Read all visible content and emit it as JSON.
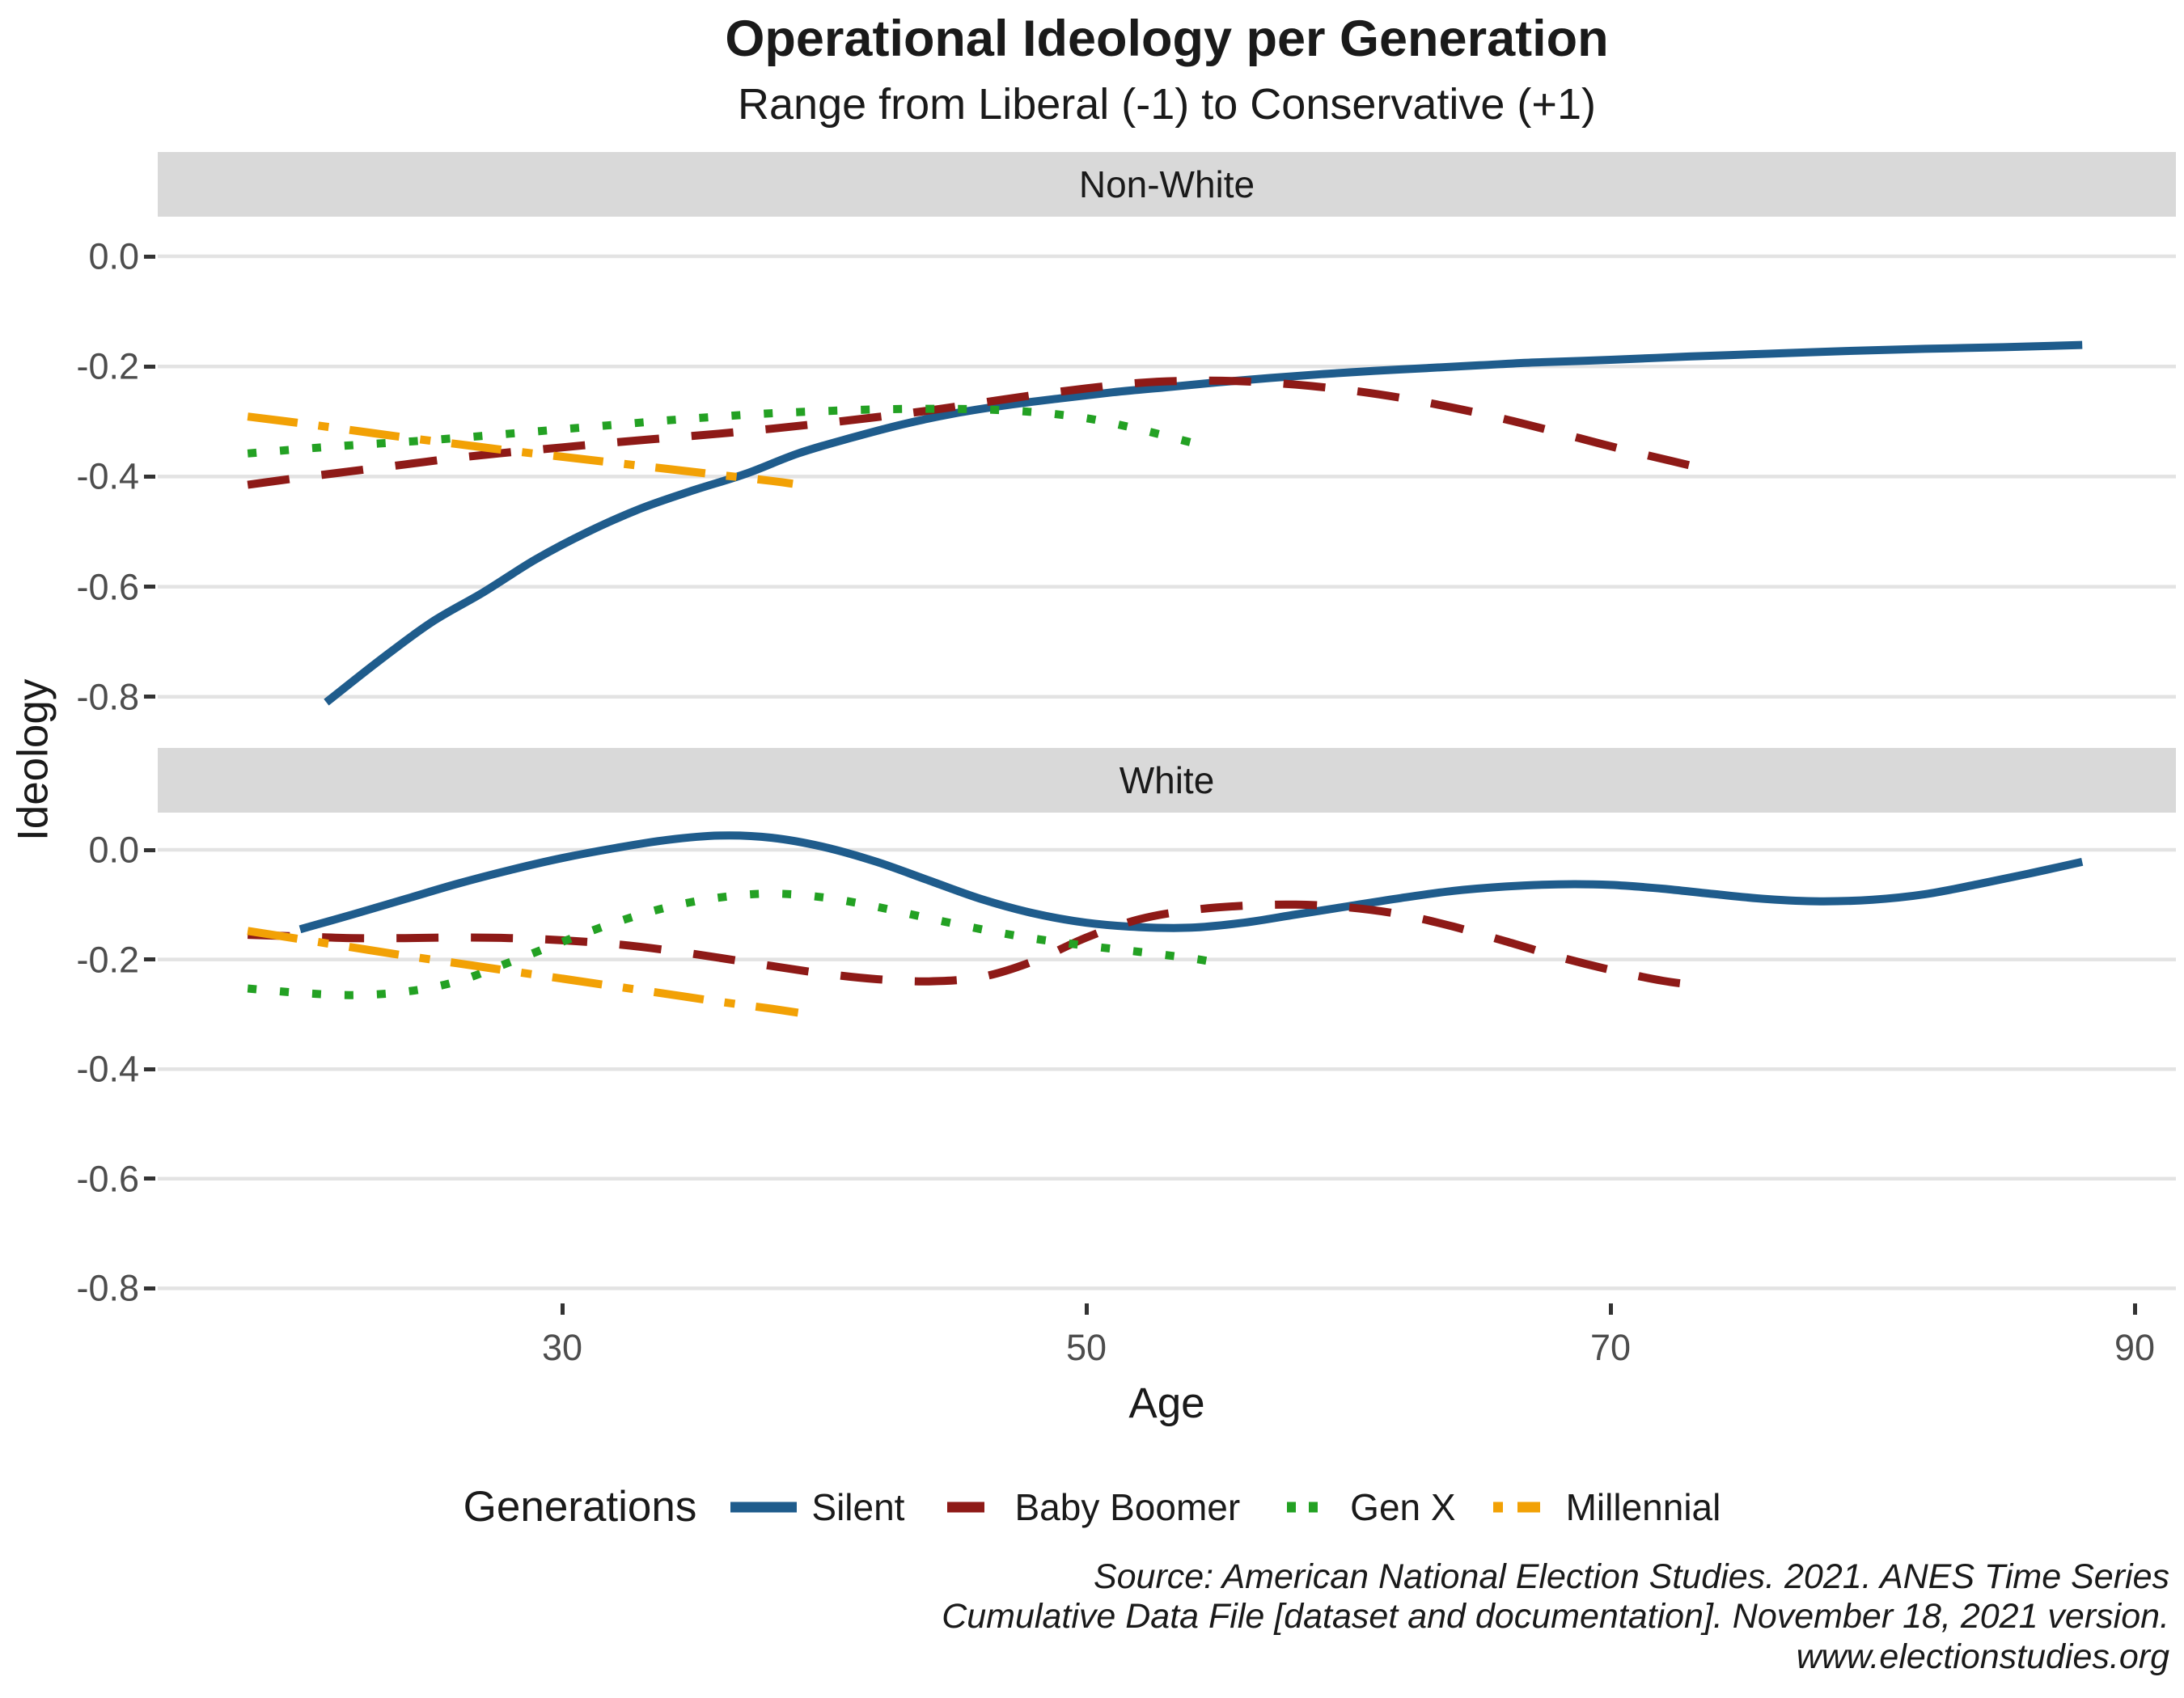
{
  "chart_data": {
    "type": "line",
    "title": "Operational Ideology per Generation",
    "subtitle": "Range from Liberal (-1) to Conservative (+1)",
    "xlabel": "Age",
    "ylabel": "Ideology",
    "x_ticks": [
      30,
      50,
      70,
      90
    ],
    "y_ticks": [
      0.0,
      -0.2,
      -0.4,
      -0.6,
      -0.8
    ],
    "y_tick_labels": [
      "0.0",
      "-0.2",
      "-0.4",
      "-0.6",
      "-0.8"
    ],
    "x_range": [
      14.5,
      91.5
    ],
    "grid": "horizontal-major-only",
    "legend_position": "bottom",
    "legend_title": "Generations",
    "legend_items": [
      {
        "label": "Silent",
        "color": "#1F5C8C",
        "style": "solid"
      },
      {
        "label": "Baby Boomer",
        "color": "#8E1A17",
        "style": "dashed"
      },
      {
        "label": "Gen X",
        "color": "#23A123",
        "style": "dotted"
      },
      {
        "label": "Millennial",
        "color": "#F2A105",
        "style": "dashdot"
      }
    ],
    "facets": [
      {
        "label": "Non-White",
        "series": [
          {
            "name": "Silent",
            "color": "#1F5C8C",
            "style": "solid",
            "points": [
              [
                21,
                -0.81
              ],
              [
                23,
                -0.735
              ],
              [
                25,
                -0.665
              ],
              [
                27,
                -0.61
              ],
              [
                29,
                -0.55
              ],
              [
                31,
                -0.5
              ],
              [
                33,
                -0.458
              ],
              [
                35,
                -0.425
              ],
              [
                37,
                -0.395
              ],
              [
                39,
                -0.358
              ],
              [
                41,
                -0.33
              ],
              [
                43,
                -0.305
              ],
              [
                45,
                -0.285
              ],
              [
                47,
                -0.27
              ],
              [
                49,
                -0.258
              ],
              [
                51,
                -0.247
              ],
              [
                53,
                -0.238
              ],
              [
                55,
                -0.229
              ],
              [
                57,
                -0.221
              ],
              [
                59,
                -0.214
              ],
              [
                61,
                -0.208
              ],
              [
                63,
                -0.203
              ],
              [
                65,
                -0.198
              ],
              [
                67,
                -0.193
              ],
              [
                70,
                -0.188
              ],
              [
                73,
                -0.182
              ],
              [
                76,
                -0.177
              ],
              [
                79,
                -0.172
              ],
              [
                82,
                -0.168
              ],
              [
                85,
                -0.165
              ],
              [
                88,
                -0.161
              ]
            ]
          },
          {
            "name": "Baby Boomer",
            "color": "#8E1A17",
            "style": "dashed",
            "points": [
              [
                18,
                -0.415
              ],
              [
                20,
                -0.402
              ],
              [
                22,
                -0.39
              ],
              [
                24,
                -0.378
              ],
              [
                26,
                -0.366
              ],
              [
                28,
                -0.356
              ],
              [
                30,
                -0.347
              ],
              [
                32,
                -0.338
              ],
              [
                34,
                -0.33
              ],
              [
                36,
                -0.322
              ],
              [
                38,
                -0.313
              ],
              [
                40,
                -0.303
              ],
              [
                42,
                -0.292
              ],
              [
                44,
                -0.28
              ],
              [
                46,
                -0.266
              ],
              [
                48,
                -0.252
              ],
              [
                50,
                -0.24
              ],
              [
                52,
                -0.23
              ],
              [
                54,
                -0.226
              ],
              [
                56,
                -0.227
              ],
              [
                58,
                -0.233
              ],
              [
                60,
                -0.243
              ],
              [
                62,
                -0.257
              ],
              [
                64,
                -0.275
              ],
              [
                66,
                -0.296
              ],
              [
                68,
                -0.32
              ],
              [
                70,
                -0.345
              ],
              [
                72,
                -0.368
              ],
              [
                73.5,
                -0.385
              ]
            ]
          },
          {
            "name": "Gen X",
            "color": "#23A123",
            "style": "dotted",
            "points": [
              [
                18,
                -0.358
              ],
              [
                20,
                -0.35
              ],
              [
                22,
                -0.343
              ],
              [
                24,
                -0.337
              ],
              [
                26,
                -0.33
              ],
              [
                28,
                -0.322
              ],
              [
                30,
                -0.314
              ],
              [
                32,
                -0.306
              ],
              [
                34,
                -0.298
              ],
              [
                36,
                -0.291
              ],
              [
                38,
                -0.285
              ],
              [
                40,
                -0.281
              ],
              [
                42,
                -0.278
              ],
              [
                44,
                -0.277
              ],
              [
                46,
                -0.278
              ],
              [
                48,
                -0.283
              ],
              [
                50,
                -0.294
              ],
              [
                52,
                -0.314
              ],
              [
                54,
                -0.338
              ]
            ]
          },
          {
            "name": "Millennial",
            "color": "#F2A105",
            "style": "dashdot",
            "points": [
              [
                18,
                -0.291
              ],
              [
                20,
                -0.303
              ],
              [
                22,
                -0.316
              ],
              [
                24,
                -0.329
              ],
              [
                26,
                -0.341
              ],
              [
                28,
                -0.353
              ],
              [
                30,
                -0.364
              ],
              [
                32,
                -0.375
              ],
              [
                34,
                -0.386
              ],
              [
                36,
                -0.397
              ],
              [
                38,
                -0.408
              ],
              [
                38.8,
                -0.413
              ]
            ]
          }
        ]
      },
      {
        "label": "White",
        "series": [
          {
            "name": "Silent",
            "color": "#1F5C8C",
            "style": "solid",
            "points": [
              [
                20,
                -0.145
              ],
              [
                22,
                -0.118
              ],
              [
                24,
                -0.09
              ],
              [
                26,
                -0.062
              ],
              [
                28,
                -0.037
              ],
              [
                30,
                -0.015
              ],
              [
                32,
                0.003
              ],
              [
                34,
                0.018
              ],
              [
                36,
                0.026
              ],
              [
                38,
                0.022
              ],
              [
                40,
                0.005
              ],
              [
                42,
                -0.022
              ],
              [
                44,
                -0.056
              ],
              [
                46,
                -0.09
              ],
              [
                48,
                -0.116
              ],
              [
                50,
                -0.133
              ],
              [
                52,
                -0.141
              ],
              [
                54,
                -0.142
              ],
              [
                56,
                -0.133
              ],
              [
                58,
                -0.118
              ],
              [
                60,
                -0.103
              ],
              [
                62,
                -0.088
              ],
              [
                64,
                -0.075
              ],
              [
                66,
                -0.067
              ],
              [
                68,
                -0.063
              ],
              [
                70,
                -0.064
              ],
              [
                72,
                -0.071
              ],
              [
                74,
                -0.081
              ],
              [
                76,
                -0.09
              ],
              [
                78,
                -0.094
              ],
              [
                80,
                -0.091
              ],
              [
                82,
                -0.081
              ],
              [
                84,
                -0.063
              ],
              [
                86,
                -0.043
              ],
              [
                88,
                -0.022
              ]
            ]
          },
          {
            "name": "Baby Boomer",
            "color": "#8E1A17",
            "style": "dashed",
            "points": [
              [
                18,
                -0.155
              ],
              [
                20,
                -0.158
              ],
              [
                22,
                -0.161
              ],
              [
                24,
                -0.161
              ],
              [
                26,
                -0.16
              ],
              [
                28,
                -0.161
              ],
              [
                30,
                -0.165
              ],
              [
                32,
                -0.172
              ],
              [
                34,
                -0.183
              ],
              [
                36,
                -0.197
              ],
              [
                38,
                -0.212
              ],
              [
                40,
                -0.226
              ],
              [
                42,
                -0.236
              ],
              [
                44,
                -0.24
              ],
              [
                46,
                -0.232
              ],
              [
                48,
                -0.203
              ],
              [
                50,
                -0.16
              ],
              [
                52,
                -0.127
              ],
              [
                54,
                -0.11
              ],
              [
                56,
                -0.102
              ],
              [
                58,
                -0.1
              ],
              [
                60,
                -0.105
              ],
              [
                62,
                -0.118
              ],
              [
                64,
                -0.14
              ],
              [
                66,
                -0.167
              ],
              [
                68,
                -0.195
              ],
              [
                70,
                -0.219
              ],
              [
                72,
                -0.239
              ],
              [
                73.5,
                -0.248
              ]
            ]
          },
          {
            "name": "Gen X",
            "color": "#23A123",
            "style": "dotted",
            "points": [
              [
                18,
                -0.253
              ],
              [
                20,
                -0.261
              ],
              [
                22,
                -0.265
              ],
              [
                24,
                -0.259
              ],
              [
                26,
                -0.24
              ],
              [
                28,
                -0.205
              ],
              [
                30,
                -0.168
              ],
              [
                32,
                -0.133
              ],
              [
                34,
                -0.105
              ],
              [
                36,
                -0.087
              ],
              [
                38,
                -0.08
              ],
              [
                40,
                -0.087
              ],
              [
                42,
                -0.104
              ],
              [
                44,
                -0.125
              ],
              [
                46,
                -0.145
              ],
              [
                48,
                -0.162
              ],
              [
                50,
                -0.175
              ],
              [
                52,
                -0.186
              ],
              [
                54,
                -0.198
              ],
              [
                55,
                -0.206
              ]
            ]
          },
          {
            "name": "Millennial",
            "color": "#F2A105",
            "style": "dashdot",
            "points": [
              [
                18,
                -0.148
              ],
              [
                20,
                -0.163
              ],
              [
                22,
                -0.178
              ],
              [
                24,
                -0.193
              ],
              [
                26,
                -0.207
              ],
              [
                28,
                -0.221
              ],
              [
                30,
                -0.235
              ],
              [
                32,
                -0.249
              ],
              [
                34,
                -0.263
              ],
              [
                36,
                -0.277
              ],
              [
                38,
                -0.29
              ],
              [
                39,
                -0.297
              ]
            ]
          }
        ]
      }
    ]
  },
  "colors": {
    "strip_background": "#D9D9D9",
    "gridline": "#E3E3E3",
    "tick_text": "#4D4D4D",
    "tick_mark": "#333333",
    "silent": "#1F5C8C",
    "baby_boomer": "#8E1A17",
    "gen_x": "#23A123",
    "millennial": "#F2A105"
  },
  "caption": {
    "lines": [
      "Source: American National Election Studies. 2021. ANES Time Series",
      "Cumulative Data File [dataset and documentation]. November 18, 2021 version.",
      "www.electionstudies.org"
    ]
  }
}
